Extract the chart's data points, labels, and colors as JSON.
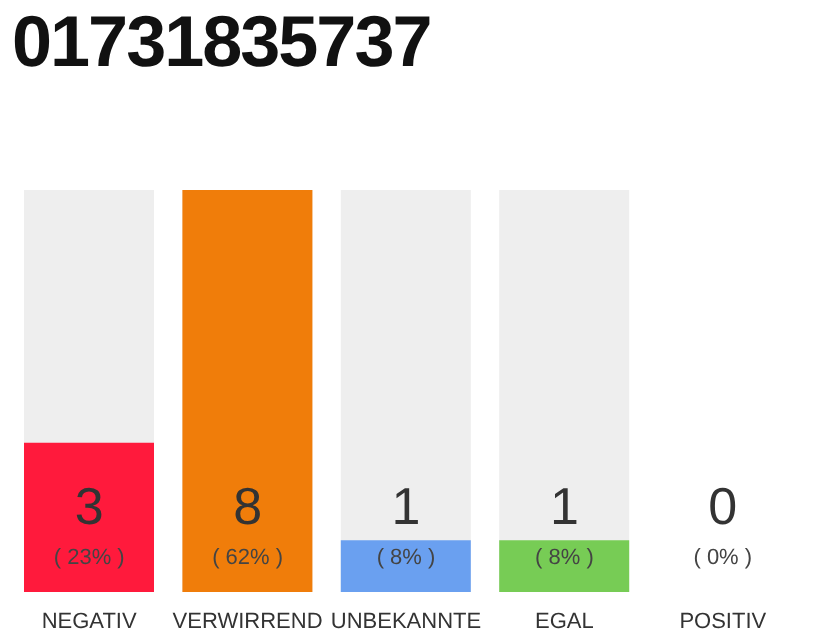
{
  "chart_data": {
    "type": "bar",
    "title": "01731835737",
    "categories": [
      "NEGATIV",
      "VERWIRREND",
      "UNBEKANNTE",
      "EGAL",
      "POSITIV"
    ],
    "values": [
      23,
      62,
      8,
      8,
      0
    ],
    "colors": [
      "#ff1a3c",
      "#f07d0a",
      "#6aa0f0",
      "#77cc55",
      "#cccccc"
    ],
    "value_labels": [
      "( 23% )",
      "( 62% )",
      "( 8% )",
      "( 8% )",
      "( 0% )"
    ],
    "annotations": [
      "3",
      "8",
      "1",
      "1",
      "0"
    ],
    "tick_labels": "x"
  }
}
